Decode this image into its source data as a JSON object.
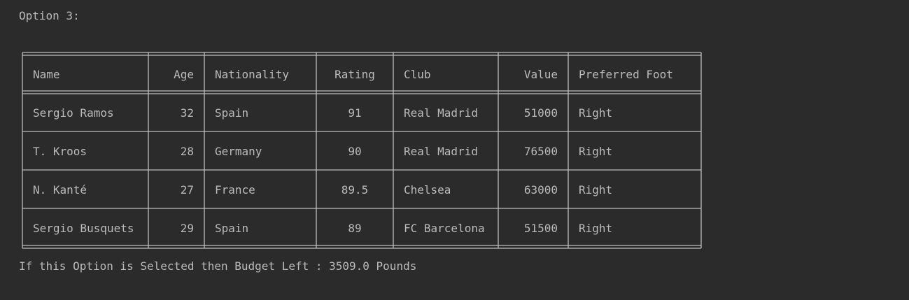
{
  "heading": "Option 3:",
  "table": {
    "columns": [
      "Name",
      "Age",
      "Nationality",
      "Rating",
      "Club",
      "Value",
      "Preferred Foot"
    ],
    "rows": [
      [
        "Sergio Ramos",
        "32",
        "Spain",
        "91",
        "Real Madrid",
        "51000",
        "Right"
      ],
      [
        "T. Kroos",
        "28",
        "Germany",
        "90",
        "Real Madrid",
        "76500",
        "Right"
      ],
      [
        "N. Kanté",
        "27",
        "France",
        "89.5",
        "Chelsea",
        "63000",
        "Right"
      ],
      [
        "Sergio Busquets",
        "29",
        "Spain",
        "89",
        "FC Barcelona",
        "51500",
        "Right"
      ]
    ]
  },
  "footer": "If this Option is Selected then Budget Left : 3509.0 Pounds"
}
